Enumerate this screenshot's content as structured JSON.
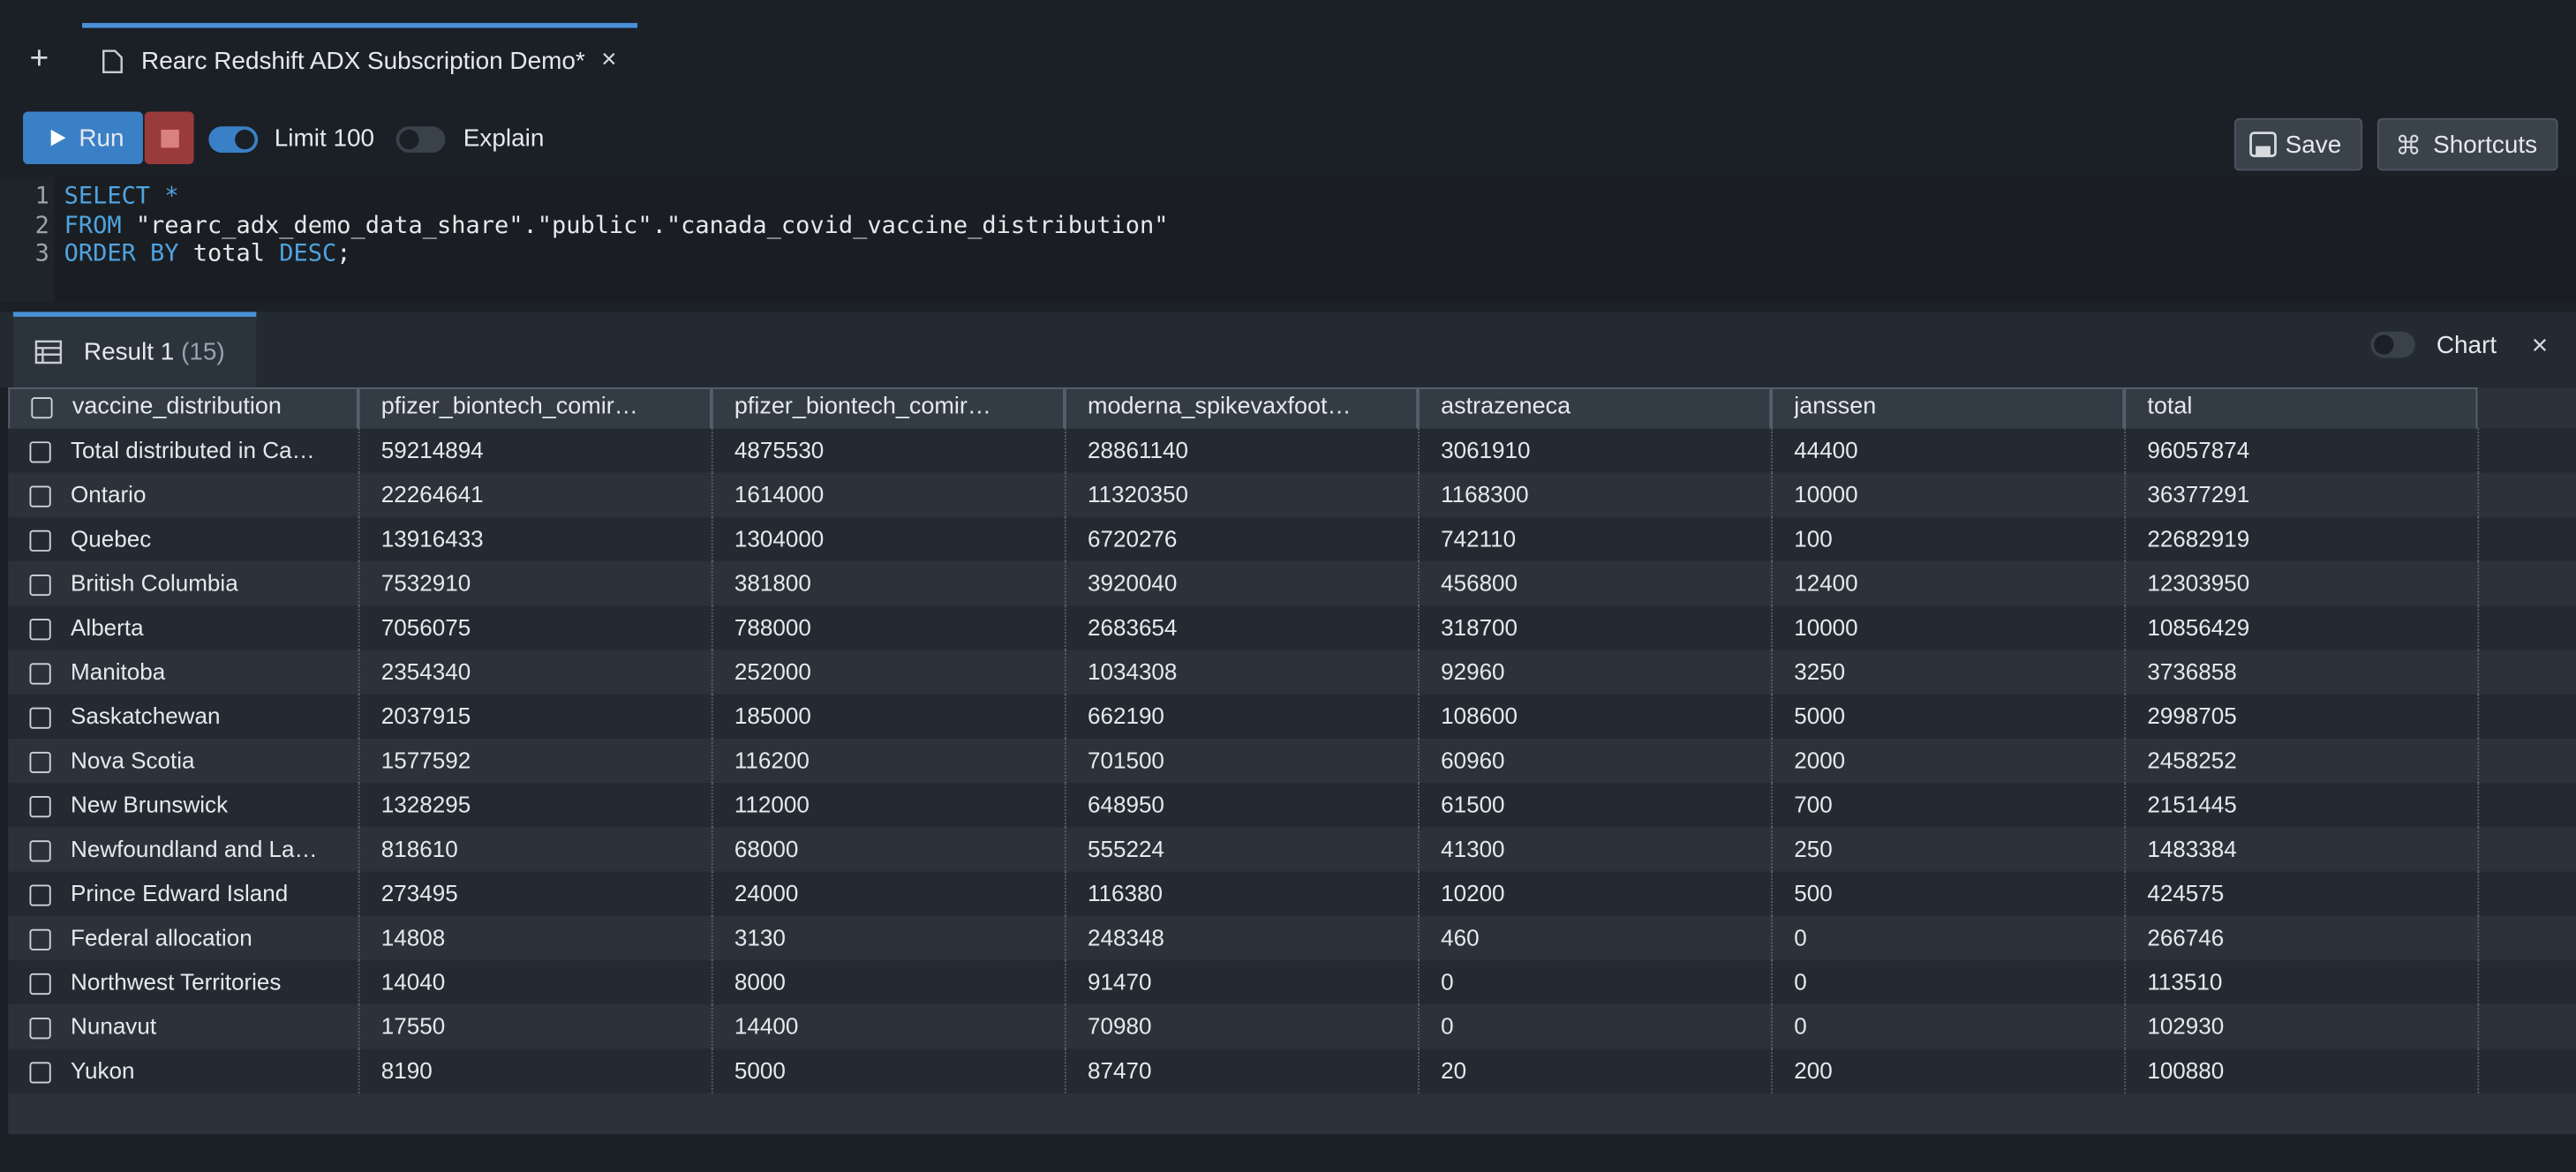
{
  "header": {
    "tab_title": "Rearc Redshift ADX Subscription Demo*"
  },
  "toolbar": {
    "run": "Run",
    "limit": "Limit 100",
    "explain": "Explain",
    "save": "Save",
    "shortcuts": "Shortcuts"
  },
  "editor": {
    "lines": [
      {
        "number": 1,
        "tokens": [
          {
            "text": "SELECT",
            "style": "keyword"
          },
          {
            "text": " *",
            "style": "keyword"
          }
        ]
      },
      {
        "number": 2,
        "tokens": [
          {
            "text": "FROM",
            "style": "keyword"
          },
          {
            "text": " \"rearc_adx_demo_data_share\".\"public\".\"canada_covid_vaccine_distribution\"",
            "style": "plain"
          }
        ]
      },
      {
        "number": 3,
        "tokens": [
          {
            "text": "ORDER BY",
            "style": "keyword"
          },
          {
            "text": " total ",
            "style": "plain"
          },
          {
            "text": "DESC",
            "style": "keyword"
          },
          {
            "text": ";",
            "style": "plain"
          }
        ]
      }
    ]
  },
  "results": {
    "label": "Result 1",
    "count": "(15)",
    "chart": "Chart"
  },
  "table": {
    "columns": [
      "vaccine_distribution",
      "pfizer_biontech_comir…",
      "pfizer_biontech_comir…",
      "moderna_spikevaxfoot…",
      "astrazeneca",
      "janssen",
      "total"
    ],
    "rows": [
      [
        "Total distributed in Ca…",
        59214894,
        4875530,
        28861140,
        3061910,
        44400,
        96057874
      ],
      [
        "Ontario",
        22264641,
        1614000,
        11320350,
        1168300,
        10000,
        36377291
      ],
      [
        "Quebec",
        13916433,
        1304000,
        6720276,
        742110,
        100,
        22682919
      ],
      [
        "British Columbia",
        7532910,
        381800,
        3920040,
        456800,
        12400,
        12303950
      ],
      [
        "Alberta",
        7056075,
        788000,
        2683654,
        318700,
        10000,
        10856429
      ],
      [
        "Manitoba",
        2354340,
        252000,
        1034308,
        92960,
        3250,
        3736858
      ],
      [
        "Saskatchewan",
        2037915,
        185000,
        662190,
        108600,
        5000,
        2998705
      ],
      [
        "Nova Scotia",
        1577592,
        116200,
        701500,
        60960,
        2000,
        2458252
      ],
      [
        "New Brunswick",
        1328295,
        112000,
        648950,
        61500,
        700,
        2151445
      ],
      [
        "Newfoundland and La…",
        818610,
        68000,
        555224,
        41300,
        250,
        1483384
      ],
      [
        "Prince Edward Island",
        273495,
        24000,
        116380,
        10200,
        500,
        424575
      ],
      [
        "Federal allocation",
        14808,
        3130,
        248348,
        460,
        0,
        266746
      ],
      [
        "Northwest Territories",
        14040,
        8000,
        91470,
        0,
        0,
        113510
      ],
      [
        "Nunavut",
        17550,
        14400,
        70980,
        0,
        0,
        102930
      ],
      [
        "Yukon",
        8190,
        5000,
        87470,
        20,
        200,
        100880
      ]
    ]
  }
}
